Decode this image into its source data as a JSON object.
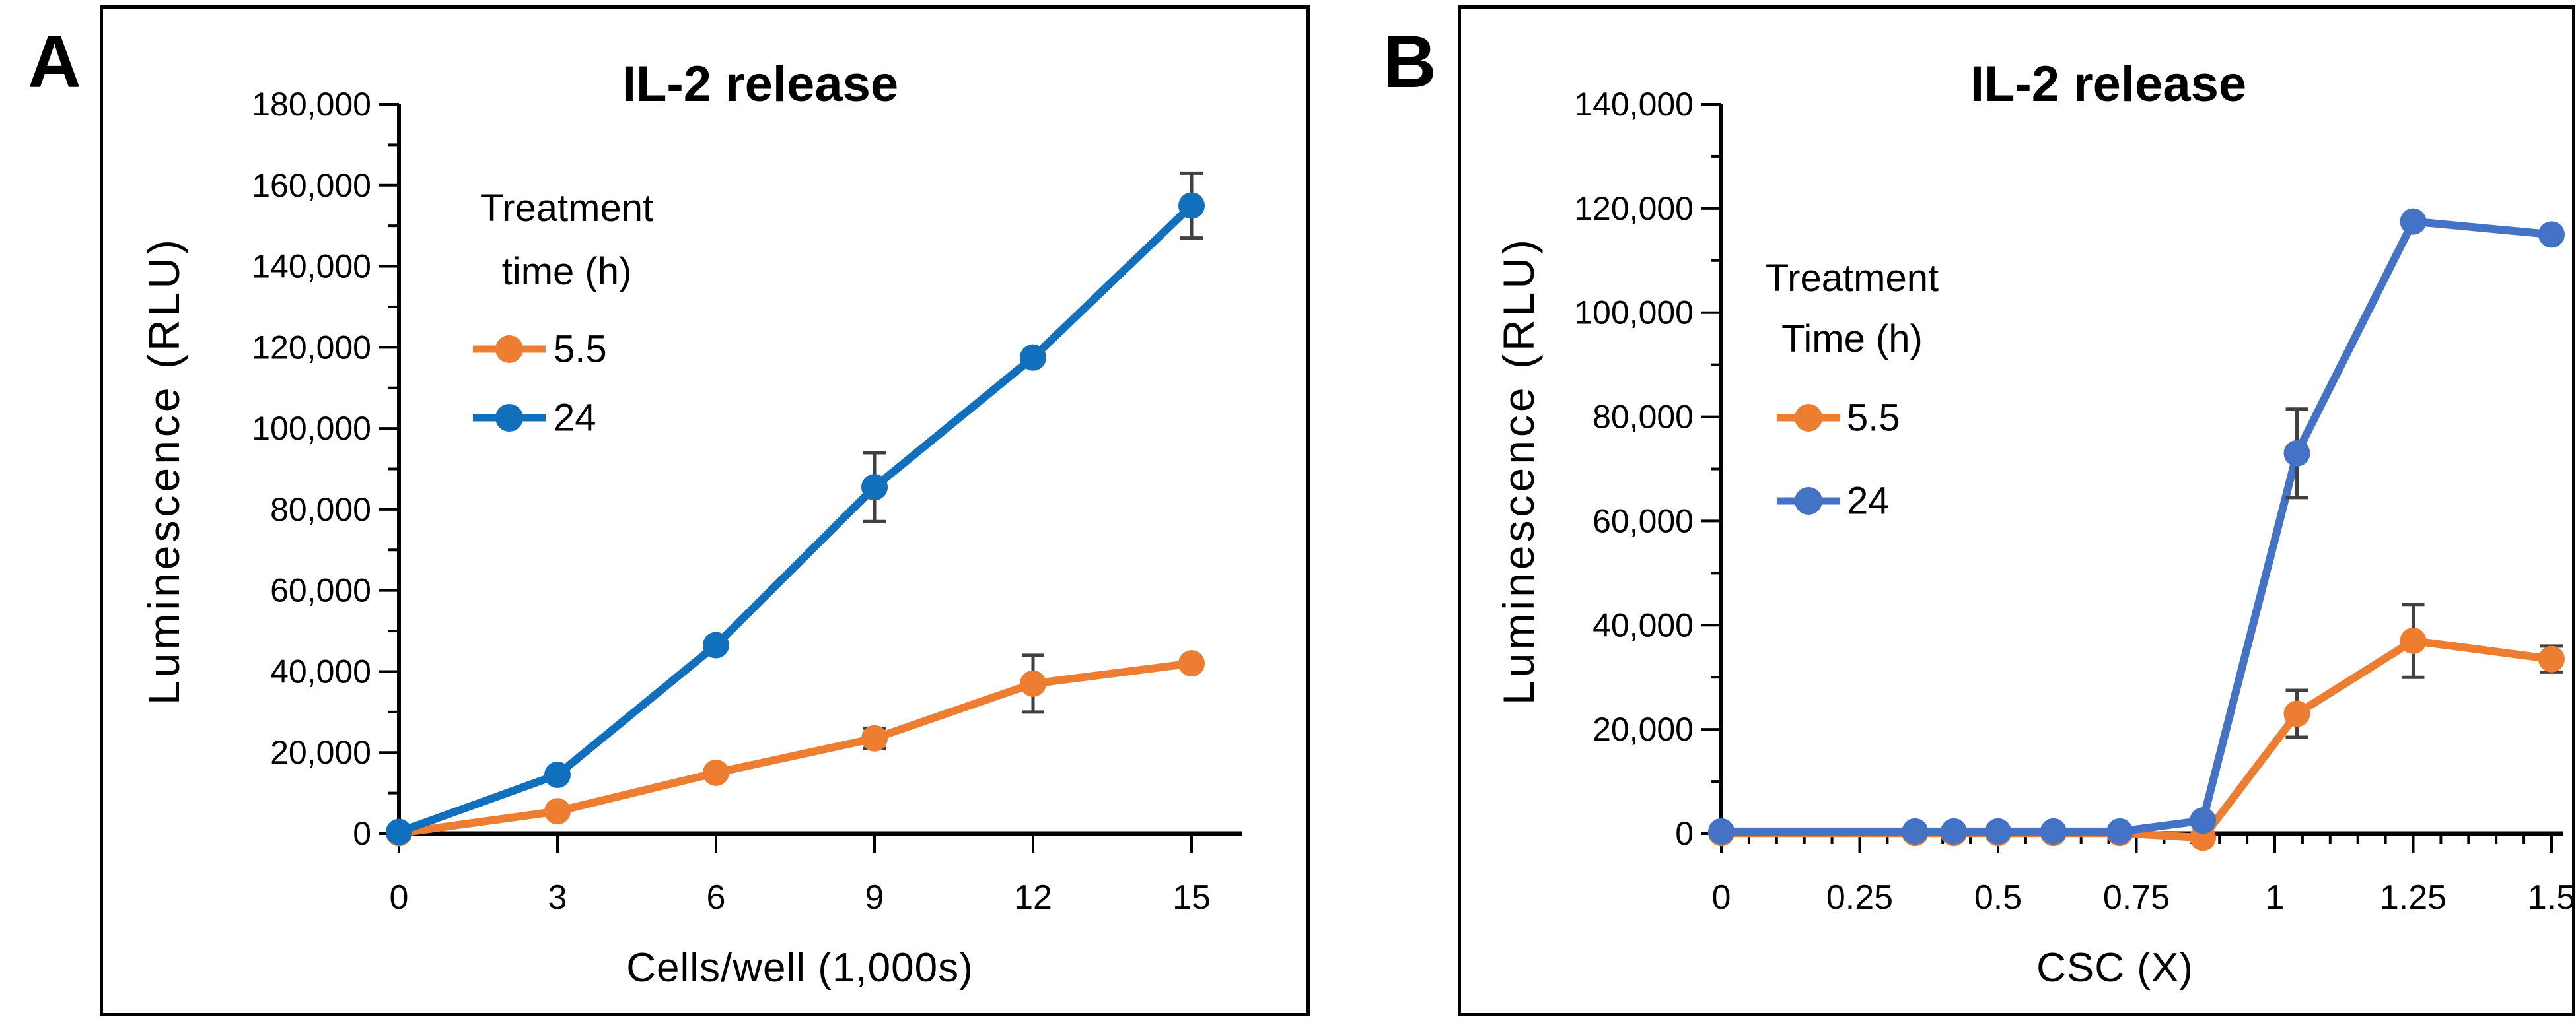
{
  "figure": {
    "panels": [
      {
        "letter": "A"
      },
      {
        "letter": "B"
      }
    ]
  },
  "colors": {
    "orange": "#ED7D31",
    "blue_panel_a": "#1070BE",
    "blue_panel_b": "#4472C4",
    "error_bar": "#404040",
    "axis": "#000000",
    "text": "#000000",
    "background": "#FFFFFF"
  },
  "chart_data": [
    {
      "panel": "A",
      "type": "line",
      "title": "IL-2 release",
      "xlabel": "Cells/well (1,000s)",
      "ylabel": "Luminescence (RLU)",
      "legend_title_lines": [
        "Treatment",
        "time (h)"
      ],
      "legend_position": "upper-left-inside",
      "grid": false,
      "x": [
        0,
        3,
        6,
        9,
        12,
        15
      ],
      "x_major_ticks": [
        0,
        3,
        6,
        9,
        12,
        15
      ],
      "x_tick_labels": [
        "0",
        "3",
        "6",
        "9",
        "12",
        "15"
      ],
      "x_minor_step": null,
      "xlim": [
        0,
        15
      ],
      "ylim": [
        0,
        180000
      ],
      "y_major_step": 20000,
      "y_minor_step": 10000,
      "series": [
        {
          "name": "5.5",
          "color_key": "orange",
          "values": [
            100,
            5500,
            15000,
            23500,
            37000,
            42000
          ],
          "errors": [
            null,
            null,
            null,
            2500,
            7000,
            null
          ]
        },
        {
          "name": "24",
          "color_key": "blue_panel_a",
          "values": [
            400,
            14500,
            46500,
            85500,
            117500,
            155000
          ],
          "errors": [
            null,
            null,
            null,
            8500,
            null,
            8000
          ]
        }
      ]
    },
    {
      "panel": "B",
      "type": "line",
      "title": "IL-2 release",
      "xlabel": "CSC (X)",
      "ylabel": "Luminescence (RLU)",
      "legend_title_lines": [
        "Treatment",
        "Time (h)"
      ],
      "legend_position": "upper-left-inside",
      "grid": false,
      "x": [
        0,
        0.35,
        0.42,
        0.5,
        0.6,
        0.72,
        0.87,
        1.04,
        1.25,
        1.5
      ],
      "x_major_ticks": [
        0,
        0.25,
        0.5,
        0.75,
        1,
        1.25,
        1.5
      ],
      "x_tick_labels": [
        "0",
        "0.25",
        "0.5",
        "0.75",
        "1",
        "1.25",
        "1.5"
      ],
      "x_minor_step": 0.05,
      "xlim": [
        0,
        1.5
      ],
      "ylim": [
        0,
        140000
      ],
      "y_major_step": 20000,
      "y_minor_step": 10000,
      "series": [
        {
          "name": "5.5",
          "color_key": "orange",
          "values": [
            100,
            100,
            100,
            100,
            100,
            100,
            -800,
            23000,
            37000,
            33500
          ],
          "errors": [
            null,
            null,
            null,
            null,
            null,
            null,
            null,
            4500,
            7000,
            2500
          ]
        },
        {
          "name": "24",
          "color_key": "blue_panel_b",
          "values": [
            400,
            400,
            400,
            400,
            400,
            400,
            2500,
            73000,
            117500,
            115000
          ],
          "errors": [
            null,
            null,
            null,
            null,
            null,
            null,
            null,
            8500,
            null,
            null
          ]
        }
      ]
    }
  ]
}
